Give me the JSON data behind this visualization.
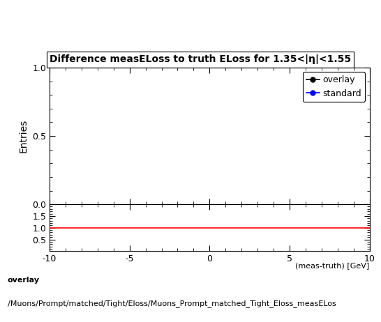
{
  "title": "Difference measELoss to truth ELoss for 1.35<|η|<1.55",
  "ylabel_main": "Entries",
  "xlim": [
    -10,
    10
  ],
  "ylim_main": [
    0,
    1
  ],
  "ylim_ratio": [
    0,
    2
  ],
  "yticks_main": [
    0,
    0.5,
    1
  ],
  "yticks_ratio": [
    0.5,
    1,
    1.5
  ],
  "xticks": [
    -10,
    -5,
    0,
    5,
    10
  ],
  "xtick_labels": [
    "-10",
    "-5",
    "0",
    "5",
    "10"
  ],
  "legend_entries": [
    {
      "label": "overlay",
      "color": "#000000",
      "marker": "o"
    },
    {
      "label": "standard",
      "color": "#0000ff",
      "marker": "o"
    }
  ],
  "ratio_line_color": "#ff0000",
  "ratio_line_y": 1.0,
  "footer_text1": "overlay",
  "footer_text2": "/Muons/Prompt/matched/Tight/Eloss/Muons_Prompt_matched_Tight_Eloss_measELos",
  "background_color": "#ffffff",
  "title_fontsize": 10,
  "axis_fontsize": 10,
  "legend_fontsize": 9,
  "tick_fontsize": 9,
  "footer_fontsize": 8
}
